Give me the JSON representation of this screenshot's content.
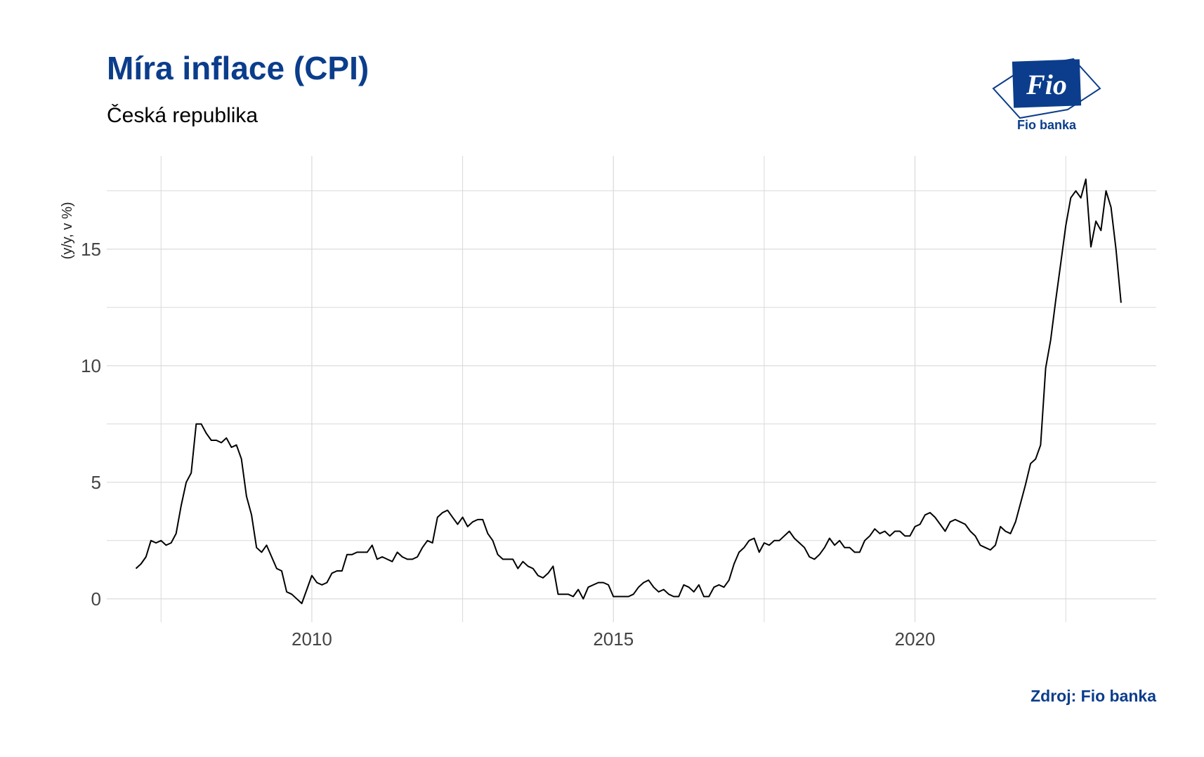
{
  "header": {
    "title": "Míra inflace (CPI)",
    "subtitle": "Česká republika"
  },
  "logo": {
    "text": "Fio",
    "caption": "Fio banka",
    "color": "#0b3d8c"
  },
  "footer": {
    "source": "Zdroj: Fio banka"
  },
  "chart_data": {
    "type": "line",
    "ylabel": "(y/y, v %)",
    "xlabel": "",
    "xlim": [
      2006.6,
      2024.0
    ],
    "ylim": [
      -1.0,
      19.0
    ],
    "x_ticks": [
      2010,
      2015,
      2020
    ],
    "x_tick_labels": [
      "2010",
      "2015",
      "2020"
    ],
    "y_ticks": [
      0,
      5,
      10,
      15
    ],
    "y_tick_labels": [
      "0",
      "5",
      "10",
      "15"
    ],
    "grid": true,
    "line_color": "#000000",
    "grid_color": "#d9d9d9",
    "series": [
      {
        "values": [
          [
            2007.083,
            1.3
          ],
          [
            2007.167,
            1.5
          ],
          [
            2007.25,
            1.8
          ],
          [
            2007.333,
            2.5
          ],
          [
            2007.417,
            2.4
          ],
          [
            2007.5,
            2.5
          ],
          [
            2007.583,
            2.3
          ],
          [
            2007.667,
            2.4
          ],
          [
            2007.75,
            2.8
          ],
          [
            2007.833,
            4.0
          ],
          [
            2007.917,
            5.0
          ],
          [
            2008.0,
            5.4
          ],
          [
            2008.083,
            7.5
          ],
          [
            2008.167,
            7.5
          ],
          [
            2008.25,
            7.1
          ],
          [
            2008.333,
            6.8
          ],
          [
            2008.417,
            6.8
          ],
          [
            2008.5,
            6.7
          ],
          [
            2008.583,
            6.9
          ],
          [
            2008.667,
            6.5
          ],
          [
            2008.75,
            6.6
          ],
          [
            2008.833,
            6.0
          ],
          [
            2008.917,
            4.4
          ],
          [
            2009.0,
            3.6
          ],
          [
            2009.083,
            2.2
          ],
          [
            2009.167,
            2.0
          ],
          [
            2009.25,
            2.3
          ],
          [
            2009.333,
            1.8
          ],
          [
            2009.417,
            1.3
          ],
          [
            2009.5,
            1.2
          ],
          [
            2009.583,
            0.3
          ],
          [
            2009.667,
            0.2
          ],
          [
            2009.75,
            0.0
          ],
          [
            2009.833,
            -0.2
          ],
          [
            2009.917,
            0.4
          ],
          [
            2010.0,
            1.0
          ],
          [
            2010.083,
            0.7
          ],
          [
            2010.167,
            0.6
          ],
          [
            2010.25,
            0.7
          ],
          [
            2010.333,
            1.1
          ],
          [
            2010.417,
            1.2
          ],
          [
            2010.5,
            1.2
          ],
          [
            2010.583,
            1.9
          ],
          [
            2010.667,
            1.9
          ],
          [
            2010.75,
            2.0
          ],
          [
            2010.833,
            2.0
          ],
          [
            2010.917,
            2.0
          ],
          [
            2011.0,
            2.3
          ],
          [
            2011.083,
            1.7
          ],
          [
            2011.167,
            1.8
          ],
          [
            2011.25,
            1.7
          ],
          [
            2011.333,
            1.6
          ],
          [
            2011.417,
            2.0
          ],
          [
            2011.5,
            1.8
          ],
          [
            2011.583,
            1.7
          ],
          [
            2011.667,
            1.7
          ],
          [
            2011.75,
            1.8
          ],
          [
            2011.833,
            2.2
          ],
          [
            2011.917,
            2.5
          ],
          [
            2012.0,
            2.4
          ],
          [
            2012.083,
            3.5
          ],
          [
            2012.167,
            3.7
          ],
          [
            2012.25,
            3.8
          ],
          [
            2012.333,
            3.5
          ],
          [
            2012.417,
            3.2
          ],
          [
            2012.5,
            3.5
          ],
          [
            2012.583,
            3.1
          ],
          [
            2012.667,
            3.3
          ],
          [
            2012.75,
            3.4
          ],
          [
            2012.833,
            3.4
          ],
          [
            2012.917,
            2.8
          ],
          [
            2013.0,
            2.5
          ],
          [
            2013.083,
            1.9
          ],
          [
            2013.167,
            1.7
          ],
          [
            2013.25,
            1.7
          ],
          [
            2013.333,
            1.7
          ],
          [
            2013.417,
            1.3
          ],
          [
            2013.5,
            1.6
          ],
          [
            2013.583,
            1.4
          ],
          [
            2013.667,
            1.3
          ],
          [
            2013.75,
            1.0
          ],
          [
            2013.833,
            0.9
          ],
          [
            2013.917,
            1.1
          ],
          [
            2014.0,
            1.4
          ],
          [
            2014.083,
            0.2
          ],
          [
            2014.167,
            0.2
          ],
          [
            2014.25,
            0.2
          ],
          [
            2014.333,
            0.1
          ],
          [
            2014.417,
            0.4
          ],
          [
            2014.5,
            0.0
          ],
          [
            2014.583,
            0.5
          ],
          [
            2014.667,
            0.6
          ],
          [
            2014.75,
            0.7
          ],
          [
            2014.833,
            0.7
          ],
          [
            2014.917,
            0.6
          ],
          [
            2015.0,
            0.1
          ],
          [
            2015.083,
            0.1
          ],
          [
            2015.167,
            0.1
          ],
          [
            2015.25,
            0.1
          ],
          [
            2015.333,
            0.2
          ],
          [
            2015.417,
            0.5
          ],
          [
            2015.5,
            0.7
          ],
          [
            2015.583,
            0.8
          ],
          [
            2015.667,
            0.5
          ],
          [
            2015.75,
            0.3
          ],
          [
            2015.833,
            0.4
          ],
          [
            2015.917,
            0.2
          ],
          [
            2016.0,
            0.1
          ],
          [
            2016.083,
            0.1
          ],
          [
            2016.167,
            0.6
          ],
          [
            2016.25,
            0.5
          ],
          [
            2016.333,
            0.3
          ],
          [
            2016.417,
            0.6
          ],
          [
            2016.5,
            0.1
          ],
          [
            2016.583,
            0.1
          ],
          [
            2016.667,
            0.5
          ],
          [
            2016.75,
            0.6
          ],
          [
            2016.833,
            0.5
          ],
          [
            2016.917,
            0.8
          ],
          [
            2017.0,
            1.5
          ],
          [
            2017.083,
            2.0
          ],
          [
            2017.167,
            2.2
          ],
          [
            2017.25,
            2.5
          ],
          [
            2017.333,
            2.6
          ],
          [
            2017.417,
            2.0
          ],
          [
            2017.5,
            2.4
          ],
          [
            2017.583,
            2.3
          ],
          [
            2017.667,
            2.5
          ],
          [
            2017.75,
            2.5
          ],
          [
            2017.833,
            2.7
          ],
          [
            2017.917,
            2.9
          ],
          [
            2018.0,
            2.6
          ],
          [
            2018.083,
            2.4
          ],
          [
            2018.167,
            2.2
          ],
          [
            2018.25,
            1.8
          ],
          [
            2018.333,
            1.7
          ],
          [
            2018.417,
            1.9
          ],
          [
            2018.5,
            2.2
          ],
          [
            2018.583,
            2.6
          ],
          [
            2018.667,
            2.3
          ],
          [
            2018.75,
            2.5
          ],
          [
            2018.833,
            2.2
          ],
          [
            2018.917,
            2.2
          ],
          [
            2019.0,
            2.0
          ],
          [
            2019.083,
            2.0
          ],
          [
            2019.167,
            2.5
          ],
          [
            2019.25,
            2.7
          ],
          [
            2019.333,
            3.0
          ],
          [
            2019.417,
            2.8
          ],
          [
            2019.5,
            2.9
          ],
          [
            2019.583,
            2.7
          ],
          [
            2019.667,
            2.9
          ],
          [
            2019.75,
            2.9
          ],
          [
            2019.833,
            2.7
          ],
          [
            2019.917,
            2.7
          ],
          [
            2020.0,
            3.1
          ],
          [
            2020.083,
            3.2
          ],
          [
            2020.167,
            3.6
          ],
          [
            2020.25,
            3.7
          ],
          [
            2020.333,
            3.5
          ],
          [
            2020.417,
            3.2
          ],
          [
            2020.5,
            2.9
          ],
          [
            2020.583,
            3.3
          ],
          [
            2020.667,
            3.4
          ],
          [
            2020.75,
            3.3
          ],
          [
            2020.833,
            3.2
          ],
          [
            2020.917,
            2.9
          ],
          [
            2021.0,
            2.7
          ],
          [
            2021.083,
            2.3
          ],
          [
            2021.167,
            2.2
          ],
          [
            2021.25,
            2.1
          ],
          [
            2021.333,
            2.3
          ],
          [
            2021.417,
            3.1
          ],
          [
            2021.5,
            2.9
          ],
          [
            2021.583,
            2.8
          ],
          [
            2021.667,
            3.3
          ],
          [
            2021.75,
            4.1
          ],
          [
            2021.833,
            4.9
          ],
          [
            2021.917,
            5.8
          ],
          [
            2022.0,
            6.0
          ],
          [
            2022.083,
            6.6
          ],
          [
            2022.167,
            9.9
          ],
          [
            2022.25,
            11.1
          ],
          [
            2022.333,
            12.8
          ],
          [
            2022.417,
            14.4
          ],
          [
            2022.5,
            16.0
          ],
          [
            2022.583,
            17.2
          ],
          [
            2022.667,
            17.5
          ],
          [
            2022.75,
            17.2
          ],
          [
            2022.833,
            18.0
          ],
          [
            2022.917,
            15.1
          ],
          [
            2023.0,
            16.2
          ],
          [
            2023.083,
            15.8
          ],
          [
            2023.167,
            17.5
          ],
          [
            2023.25,
            16.8
          ],
          [
            2023.333,
            15.0
          ],
          [
            2023.417,
            12.7
          ]
        ]
      }
    ]
  }
}
